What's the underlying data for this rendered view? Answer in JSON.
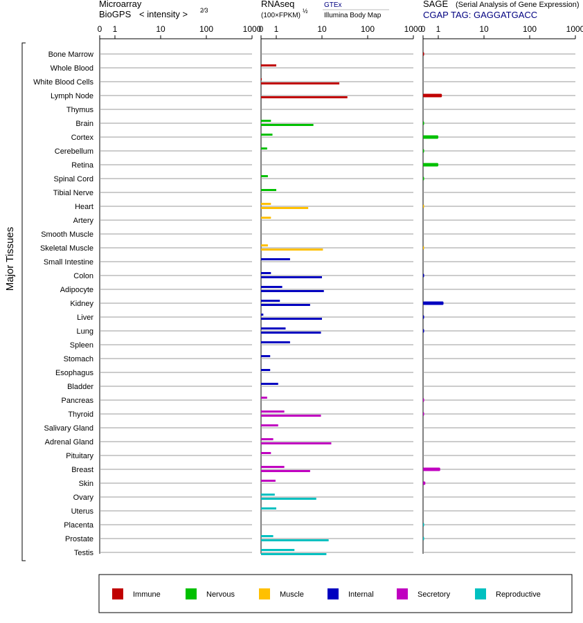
{
  "chart_data": {
    "type": "bar",
    "scale_ticks": [
      0,
      1,
      10,
      100,
      1000
    ],
    "y_axis_label": "Major Tissues",
    "panels": {
      "microarray": {
        "title1": "Microarray",
        "title2": "BioGPS",
        "subtitle": "< intensity >",
        "exponent": "2⁄3"
      },
      "rnaseq": {
        "title": "RNAseq",
        "subtitle": "(100×FPKM)",
        "exponent": "½",
        "source1": "GTEx",
        "source2": "Illumina Body Map"
      },
      "sage": {
        "title": "SAGE",
        "subtitle": "(Serial Analysis of Gene Expression)",
        "tag_line": "CGAP TAG: GAGGATGACC"
      }
    },
    "categories": [
      "Immune",
      "Nervous",
      "Muscle",
      "Internal",
      "Secretory",
      "Reproductive"
    ],
    "colors": {
      "Immune": "#c00000",
      "Nervous": "#00c000",
      "Muscle": "#ffc000",
      "Internal": "#0000c0",
      "Secretory": "#c000c0",
      "Reproductive": "#00c0c0"
    },
    "legend": [
      {
        "label": "Immune",
        "color": "#c00000"
      },
      {
        "label": "Nervous",
        "color": "#00c000"
      },
      {
        "label": "Muscle",
        "color": "#ffc000"
      },
      {
        "label": "Internal",
        "color": "#0000c0"
      },
      {
        "label": "Secretory",
        "color": "#c000c0"
      },
      {
        "label": "Reproductive",
        "color": "#00c0c0"
      }
    ],
    "tissues": [
      {
        "name": "Bone Marrow",
        "category": "Immune",
        "microarray": null,
        "gtex": null,
        "ibm": null,
        "sage": 0.02
      },
      {
        "name": "Whole Blood",
        "category": "Immune",
        "microarray": null,
        "gtex": 1.0,
        "ibm": null,
        "sage": null
      },
      {
        "name": "White Blood Cells",
        "category": "Immune",
        "microarray": null,
        "gtex": 0.05,
        "ibm": 24,
        "sage": null
      },
      {
        "name": "Lymph Node",
        "category": "Immune",
        "microarray": null,
        "gtex": null,
        "ibm": 36,
        "sage": 1.2
      },
      {
        "name": "Thymus",
        "category": "Immune",
        "microarray": null,
        "gtex": null,
        "ibm": null,
        "sage": null
      },
      {
        "name": "Brain",
        "category": "Nervous",
        "microarray": null,
        "gtex": 0.65,
        "ibm": 6.5,
        "sage": 0.02
      },
      {
        "name": "Cortex",
        "category": "Nervous",
        "microarray": null,
        "gtex": 0.75,
        "ibm": null,
        "sage": 1.0
      },
      {
        "name": "Cerebellum",
        "category": "Nervous",
        "microarray": null,
        "gtex": 0.4,
        "ibm": null,
        "sage": 0.02
      },
      {
        "name": "Retina",
        "category": "Nervous",
        "microarray": null,
        "gtex": null,
        "ibm": null,
        "sage": 1.0
      },
      {
        "name": "Spinal Cord",
        "category": "Nervous",
        "microarray": null,
        "gtex": 0.45,
        "ibm": null,
        "sage": 0.02
      },
      {
        "name": "Tibial Nerve",
        "category": "Nervous",
        "microarray": null,
        "gtex": 1.0,
        "ibm": null,
        "sage": null
      },
      {
        "name": "Heart",
        "category": "Muscle",
        "microarray": null,
        "gtex": 0.65,
        "ibm": 5.0,
        "sage": 0.01
      },
      {
        "name": "Artery",
        "category": "Muscle",
        "microarray": null,
        "gtex": 0.65,
        "ibm": null,
        "sage": null
      },
      {
        "name": "Smooth Muscle",
        "category": "Muscle",
        "microarray": null,
        "gtex": null,
        "ibm": null,
        "sage": null
      },
      {
        "name": "Skeletal Muscle",
        "category": "Muscle",
        "microarray": null,
        "gtex": 0.45,
        "ibm": 10.5,
        "sage": 0.01
      },
      {
        "name": "Small Intestine",
        "category": "Internal",
        "microarray": null,
        "gtex": 2.0,
        "ibm": null,
        "sage": null
      },
      {
        "name": "Colon",
        "category": "Internal",
        "microarray": null,
        "gtex": 0.65,
        "ibm": 10.0,
        "sage": 0.02
      },
      {
        "name": "Adipocyte",
        "category": "Internal",
        "microarray": null,
        "gtex": 1.35,
        "ibm": 11.0,
        "sage": null
      },
      {
        "name": "Kidney",
        "category": "Internal",
        "microarray": null,
        "gtex": 1.2,
        "ibm": 5.5,
        "sage": 1.3
      },
      {
        "name": "Liver",
        "category": "Internal",
        "microarray": null,
        "gtex": 0.15,
        "ibm": 10.0,
        "sage": 0.02
      },
      {
        "name": "Lung",
        "category": "Internal",
        "microarray": null,
        "gtex": 1.6,
        "ibm": 9.5,
        "sage": 0.02
      },
      {
        "name": "Spleen",
        "category": "Internal",
        "microarray": null,
        "gtex": 2.0,
        "ibm": null,
        "sage": null
      },
      {
        "name": "Stomach",
        "category": "Internal",
        "microarray": null,
        "gtex": 0.6,
        "ibm": null,
        "sage": null
      },
      {
        "name": "Esophagus",
        "category": "Internal",
        "microarray": null,
        "gtex": 0.6,
        "ibm": null,
        "sage": null
      },
      {
        "name": "Bladder",
        "category": "Internal",
        "microarray": null,
        "gtex": 1.1,
        "ibm": null,
        "sage": null
      },
      {
        "name": "Pancreas",
        "category": "Secretory",
        "microarray": null,
        "gtex": 0.4,
        "ibm": null,
        "sage": 0.02
      },
      {
        "name": "Thyroid",
        "category": "Secretory",
        "microarray": null,
        "gtex": 1.5,
        "ibm": 9.5,
        "sage": 0.02
      },
      {
        "name": "Salivary Gland",
        "category": "Secretory",
        "microarray": null,
        "gtex": 1.1,
        "ibm": null,
        "sage": null
      },
      {
        "name": "Adrenal Gland",
        "category": "Secretory",
        "microarray": null,
        "gtex": 0.8,
        "ibm": 16.0,
        "sage": null
      },
      {
        "name": "Pituitary",
        "category": "Secretory",
        "microarray": null,
        "gtex": 0.65,
        "ibm": null,
        "sage": null
      },
      {
        "name": "Breast",
        "category": "Secretory",
        "microarray": null,
        "gtex": 1.5,
        "ibm": 5.5,
        "sage": 1.1
      },
      {
        "name": "Skin",
        "category": "Secretory",
        "microarray": null,
        "gtex": 0.95,
        "ibm": null,
        "sage": 0.15
      },
      {
        "name": "Ovary",
        "category": "Reproductive",
        "microarray": null,
        "gtex": 0.9,
        "ibm": 7.5,
        "sage": null
      },
      {
        "name": "Uterus",
        "category": "Reproductive",
        "microarray": null,
        "gtex": 1.0,
        "ibm": null,
        "sage": null
      },
      {
        "name": "Placenta",
        "category": "Reproductive",
        "microarray": null,
        "gtex": null,
        "ibm": null,
        "sage": 0.01
      },
      {
        "name": "Prostate",
        "category": "Reproductive",
        "microarray": null,
        "gtex": 0.8,
        "ibm": 14.0,
        "sage": 0.01
      },
      {
        "name": "Testis",
        "category": "Reproductive",
        "microarray": null,
        "gtex": 2.5,
        "ibm": 12.5,
        "sage": null
      }
    ]
  }
}
